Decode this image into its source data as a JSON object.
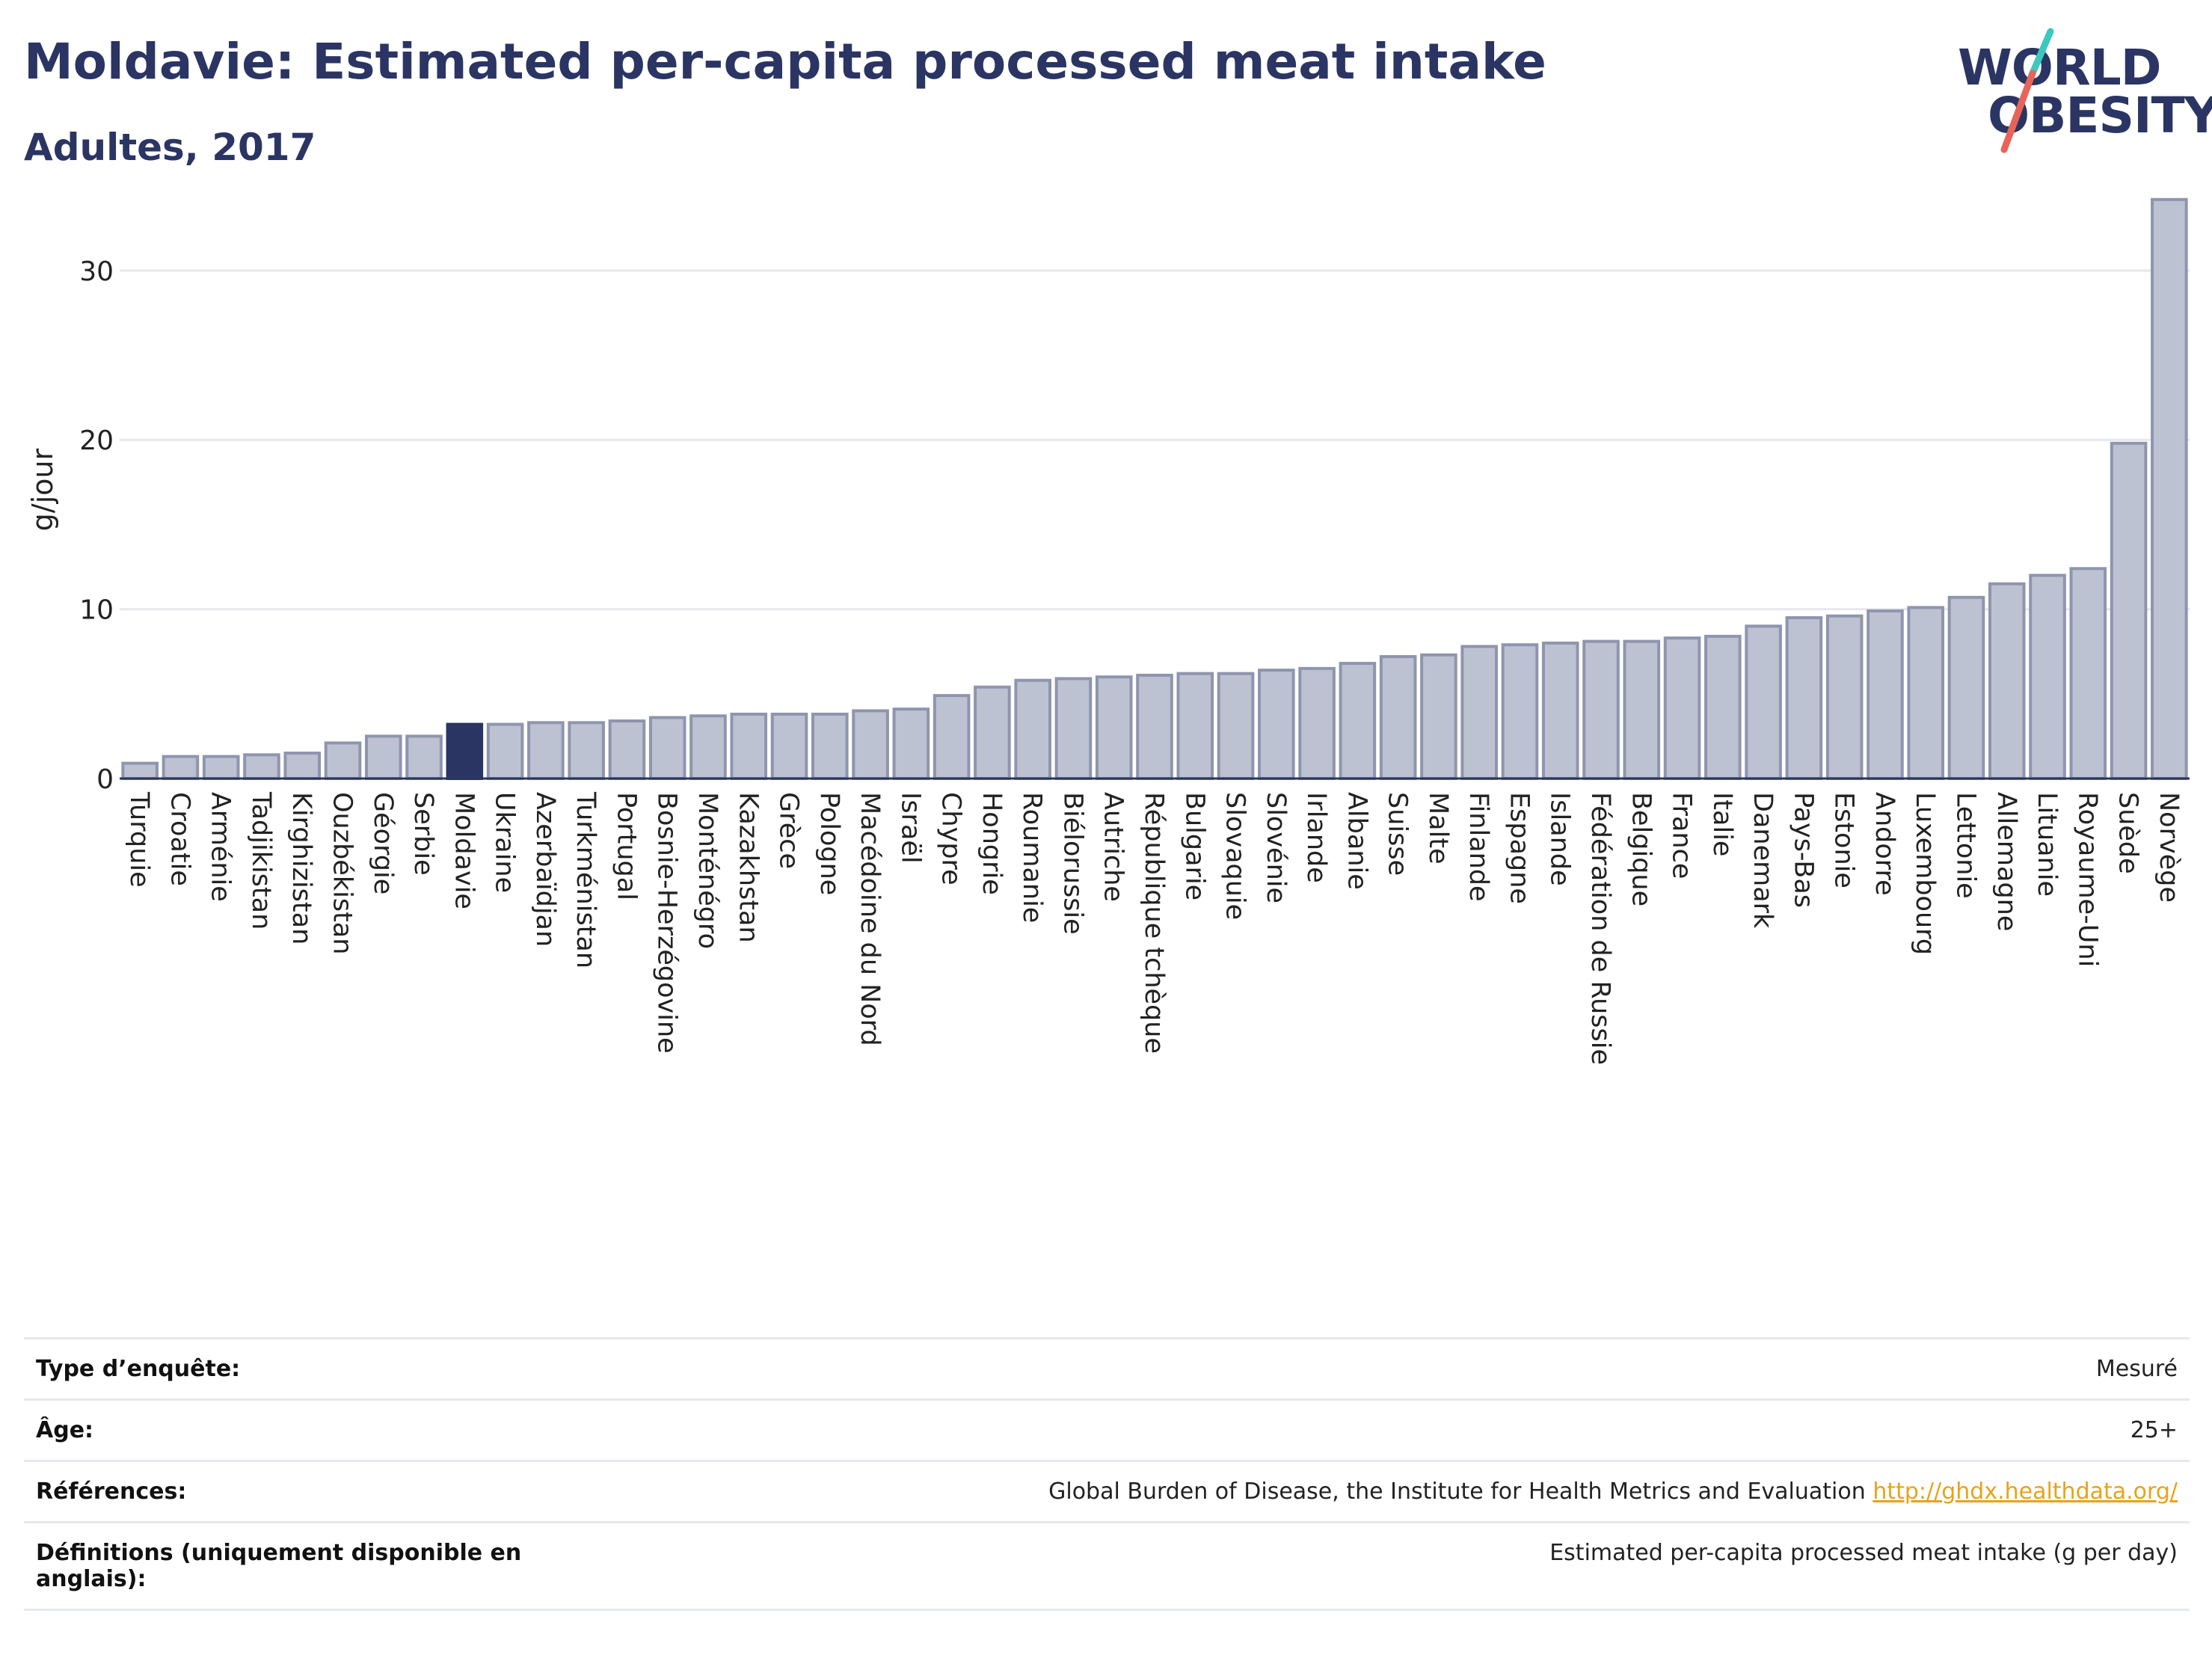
{
  "header": {
    "title": "Moldavie: Estimated per-capita processed meat intake",
    "subtitle": "Adultes, 2017"
  },
  "logo": {
    "line1": "WORLD",
    "line2": "OBESITY",
    "colors": {
      "text": "#2b3563",
      "slash_top": "#3cc8c0",
      "slash_bottom": "#e8645a"
    }
  },
  "colors": {
    "bar": "#bdc2d2",
    "bar_border": "#8e95ae",
    "highlight": "#2b3563",
    "grid": "#e6e8ee",
    "axis": "#2b3563"
  },
  "chart_data": {
    "type": "bar",
    "ylabel": "g/jour",
    "ylim": [
      0,
      34.5
    ],
    "yticks": [
      0,
      10,
      20,
      30
    ],
    "grid": true,
    "highlight": "Moldavie",
    "categories": [
      "Turquie",
      "Croatie",
      "Arménie",
      "Tadjikistan",
      "Kirghizistan",
      "Ouzbékistan",
      "Géorgie",
      "Serbie",
      "Moldavie",
      "Ukraine",
      "Azerbaïdjan",
      "Turkménistan",
      "Portugal",
      "Bosnie-Herzégovine",
      "Monténégro",
      "Kazakhstan",
      "Grèce",
      "Pologne",
      "Macédoine du Nord",
      "Israël",
      "Chypre",
      "Hongrie",
      "Roumanie",
      "Biélorussie",
      "Autriche",
      "République tchèque",
      "Bulgarie",
      "Slovaquie",
      "Slovénie",
      "Irlande",
      "Albanie",
      "Suisse",
      "Malte",
      "Finlande",
      "Espagne",
      "Islande",
      "Fédération de Russie",
      "Belgique",
      "France",
      "Italie",
      "Danemark",
      "Pays-Bas",
      "Estonie",
      "Andorre",
      "Luxembourg",
      "Lettonie",
      "Allemagne",
      "Lituanie",
      "Royaume-Uni",
      "Suède",
      "Norvège"
    ],
    "values": [
      0.9,
      1.3,
      1.3,
      1.4,
      1.5,
      2.1,
      2.5,
      2.5,
      3.2,
      3.2,
      3.3,
      3.3,
      3.4,
      3.6,
      3.7,
      3.8,
      3.8,
      3.8,
      4.0,
      4.1,
      4.9,
      5.4,
      5.8,
      5.9,
      6.0,
      6.1,
      6.2,
      6.2,
      6.4,
      6.5,
      6.8,
      7.2,
      7.3,
      7.8,
      7.9,
      8.0,
      8.1,
      8.1,
      8.3,
      8.4,
      9.0,
      9.5,
      9.6,
      9.9,
      10.1,
      10.7,
      11.5,
      12.0,
      12.4,
      19.8,
      34.2
    ]
  },
  "meta": {
    "rows": [
      {
        "label": "Type d’enquête:",
        "value": "Mesuré"
      },
      {
        "label": "Âge:",
        "value": "25+"
      },
      {
        "label": "Références:",
        "value": "Global Burden of Disease, the Institute for Health Metrics and Evaluation",
        "link": "http://ghdx.healthdata.org/"
      },
      {
        "label": "Définitions (uniquement disponible en anglais):",
        "value": "Estimated per-capita processed meat intake (g per day)"
      }
    ]
  }
}
